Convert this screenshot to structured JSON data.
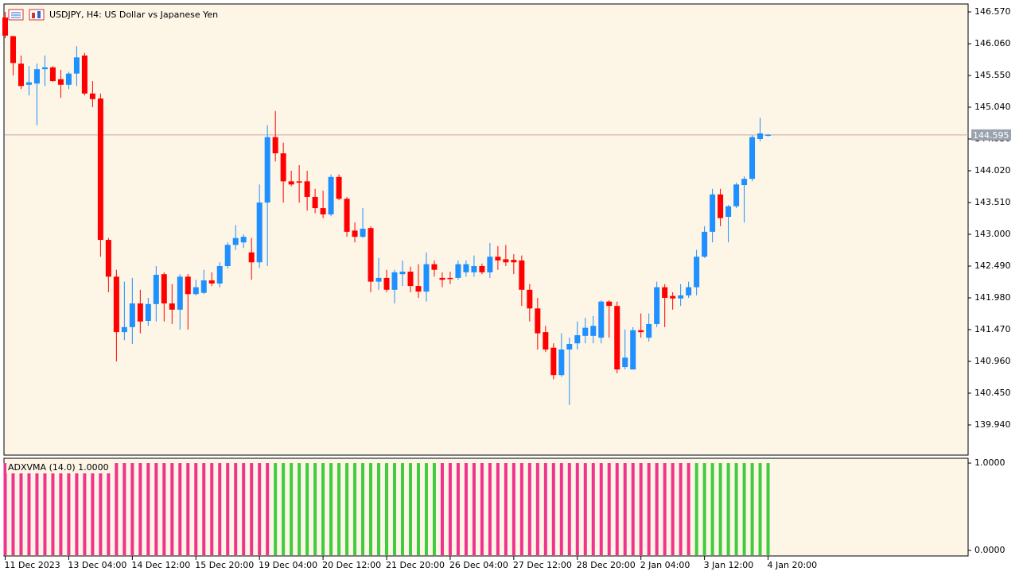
{
  "chart_data": [
    {
      "type": "candlestick",
      "title": "USDJPY, H4:  US Dollar vs Japanese Yen",
      "categories": [
        "11 Dec 2023",
        null,
        null,
        null,
        null,
        null,
        null,
        null,
        "13 Dec 04:00",
        null,
        null,
        null,
        null,
        null,
        null,
        null,
        "14 Dec 12:00",
        null,
        null,
        null,
        null,
        null,
        null,
        null,
        "15 Dec 20:00",
        null,
        null,
        null,
        null,
        null,
        null,
        null,
        "19 Dec 04:00",
        null,
        null,
        null,
        null,
        null,
        null,
        null,
        "20 Dec 12:00",
        null,
        null,
        null,
        null,
        null,
        null,
        null,
        "21 Dec 20:00",
        null,
        null,
        null,
        null,
        null,
        null,
        null,
        "26 Dec 04:00",
        null,
        null,
        null,
        null,
        null,
        null,
        null,
        "27 Dec 12:00",
        null,
        null,
        null,
        null,
        null,
        null,
        null,
        "28 Dec 20:00",
        null,
        null,
        null,
        null,
        null,
        null,
        null,
        "2 Jan 04:00",
        null,
        null,
        null,
        null,
        null,
        null,
        null,
        "3 Jan 12:00",
        null,
        null,
        null,
        null,
        null,
        null,
        null,
        "4 Jan 20:00"
      ],
      "open": [
        146.48,
        146.18,
        145.74,
        145.4,
        145.42,
        145.65,
        145.68,
        145.49,
        145.4,
        145.58,
        145.87,
        145.26,
        145.18,
        142.91,
        142.32,
        141.43,
        141.51,
        141.89,
        141.61,
        141.88,
        142.36,
        141.89,
        141.79,
        142.32,
        142.04,
        142.06,
        142.26,
        142.21,
        142.49,
        142.83,
        142.87,
        142.71,
        142.55,
        143.51,
        144.56,
        144.3,
        143.85,
        143.85,
        143.85,
        143.6,
        143.42,
        143.32,
        143.92,
        143.57,
        143.06,
        142.96,
        143.1,
        142.24,
        142.3,
        142.11,
        142.36,
        142.4,
        142.17,
        142.08,
        142.52,
        142.3,
        142.3,
        142.3,
        142.39,
        142.39,
        142.49,
        142.39,
        142.64,
        142.6,
        142.59,
        142.58,
        142.11,
        141.81,
        141.43,
        141.18,
        140.74,
        141.15,
        141.25,
        141.37,
        141.37,
        141.34,
        141.92,
        141.85,
        140.87,
        140.83,
        141.46,
        141.34,
        141.56,
        142.15,
        142.01,
        141.97,
        142.02,
        142.15,
        142.64,
        143.04,
        143.64,
        143.28,
        143.45,
        143.79,
        143.89,
        144.53,
        144.59
      ],
      "high": [
        146.57,
        146.19,
        145.87,
        145.7,
        145.74,
        145.87,
        145.7,
        145.64,
        145.61,
        146.02,
        145.91,
        145.46,
        145.26,
        142.94,
        142.43,
        142.24,
        142.3,
        142.11,
        141.98,
        142.49,
        142.39,
        142.2,
        142.36,
        142.36,
        142.27,
        142.43,
        142.39,
        142.55,
        142.87,
        143.15,
        143.0,
        142.94,
        143.8,
        144.75,
        144.98,
        144.47,
        144.02,
        144.11,
        144.02,
        143.73,
        143.7,
        143.96,
        143.96,
        143.6,
        143.19,
        143.42,
        143.13,
        142.62,
        142.43,
        142.43,
        142.58,
        142.48,
        142.52,
        142.71,
        142.58,
        142.39,
        142.4,
        142.58,
        142.58,
        142.66,
        142.53,
        142.86,
        142.81,
        142.83,
        142.68,
        142.66,
        142.2,
        141.98,
        141.53,
        141.25,
        141.41,
        141.34,
        141.6,
        141.66,
        141.69,
        141.94,
        141.94,
        141.92,
        141.47,
        141.51,
        141.73,
        141.73,
        142.24,
        142.2,
        142.07,
        142.2,
        142.24,
        142.75,
        143.13,
        143.73,
        143.73,
        143.47,
        143.83,
        143.93,
        144.59,
        144.87,
        144.61
      ],
      "low": [
        146.15,
        145.55,
        145.33,
        145.23,
        144.75,
        145.38,
        145.45,
        145.19,
        145.33,
        145.38,
        145.23,
        145.04,
        142.64,
        142.07,
        140.96,
        141.3,
        141.24,
        141.41,
        141.53,
        141.6,
        141.6,
        141.56,
        141.47,
        141.47,
        142.02,
        142.04,
        142.17,
        142.15,
        142.45,
        142.75,
        142.78,
        142.27,
        142.46,
        142.49,
        144.17,
        143.51,
        143.77,
        143.51,
        143.38,
        143.34,
        143.26,
        143.29,
        143.55,
        142.96,
        142.87,
        142.94,
        142.07,
        142.11,
        142.07,
        141.89,
        142.17,
        142.07,
        141.98,
        141.92,
        142.32,
        142.15,
        142.2,
        142.27,
        142.32,
        142.32,
        142.36,
        142.3,
        142.43,
        142.49,
        142.36,
        141.85,
        141.6,
        141.15,
        141.11,
        140.67,
        140.71,
        140.26,
        141.15,
        141.25,
        141.25,
        141.25,
        141.34,
        140.77,
        140.83,
        140.83,
        141.34,
        141.28,
        141.51,
        141.51,
        141.79,
        141.85,
        141.98,
        142.02,
        142.62,
        142.87,
        143.13,
        142.87,
        143.42,
        143.19,
        143.85,
        144.49,
        144.57
      ],
      "close": [
        146.19,
        145.75,
        145.38,
        145.44,
        145.65,
        145.68,
        145.46,
        145.4,
        145.58,
        145.84,
        145.26,
        145.17,
        142.91,
        142.32,
        141.43,
        141.51,
        141.89,
        141.6,
        141.88,
        142.35,
        141.89,
        141.79,
        142.32,
        142.04,
        142.15,
        142.26,
        142.21,
        142.49,
        142.83,
        142.94,
        142.96,
        142.55,
        143.51,
        144.56,
        144.3,
        143.85,
        143.8,
        143.83,
        143.6,
        143.42,
        143.32,
        143.92,
        143.57,
        143.04,
        142.96,
        143.09,
        142.24,
        142.3,
        142.11,
        142.39,
        142.4,
        142.17,
        142.08,
        142.52,
        142.43,
        142.27,
        142.3,
        142.52,
        142.52,
        142.49,
        142.39,
        142.64,
        142.58,
        142.55,
        142.55,
        142.11,
        141.81,
        141.41,
        141.15,
        140.74,
        141.15,
        141.24,
        141.38,
        141.5,
        141.53,
        141.92,
        141.85,
        140.83,
        141.02,
        141.46,
        141.43,
        141.56,
        142.15,
        141.98,
        141.97,
        142.02,
        142.15,
        142.64,
        143.04,
        143.64,
        143.26,
        143.45,
        143.8,
        143.89,
        144.56,
        144.62,
        144.6
      ],
      "up_color": "#1e90ff",
      "down_color": "#ff0000",
      "last_price": 144.595,
      "ylim": [
        139.4555,
        146.6975
      ],
      "yticks": [
        {
          "value": 146.57,
          "label": "146.570"
        },
        {
          "value": 146.06,
          "label": "146.060"
        },
        {
          "value": 145.55,
          "label": "145.550"
        },
        {
          "value": 145.04,
          "label": "145.040"
        },
        {
          "value": 144.53,
          "label": "144.530"
        },
        {
          "value": 144.02,
          "label": "144.020"
        },
        {
          "value": 143.51,
          "label": "143.510"
        },
        {
          "value": 143.0,
          "label": "143.000"
        },
        {
          "value": 142.49,
          "label": "142.490"
        },
        {
          "value": 141.98,
          "label": "141.980"
        },
        {
          "value": 141.47,
          "label": "141.470"
        },
        {
          "value": 140.96,
          "label": "140.960"
        },
        {
          "value": 140.45,
          "label": "140.450"
        },
        {
          "value": 139.94,
          "label": "139.940"
        }
      ]
    },
    {
      "type": "bar",
      "label": "ADXVMA (14.0) 1.0000",
      "values": [
        1,
        1,
        1,
        1,
        1,
        1,
        1,
        1,
        1,
        1,
        1,
        1,
        1,
        1,
        1,
        1,
        1,
        1,
        1,
        1,
        1,
        1,
        1,
        1,
        1,
        1,
        1,
        1,
        1,
        1,
        1,
        1,
        1,
        1,
        1,
        1,
        1,
        1,
        1,
        1,
        1,
        1,
        1,
        1,
        1,
        1,
        1,
        1,
        1,
        1,
        1,
        1,
        1,
        1,
        1,
        1,
        1,
        1,
        1,
        1,
        1,
        1,
        1,
        1,
        1,
        1,
        1,
        1,
        1,
        1,
        1,
        1,
        1,
        1,
        1,
        1,
        1,
        1,
        1,
        1,
        1,
        1,
        1,
        1,
        1,
        1,
        1,
        1,
        1,
        1,
        1,
        1,
        1,
        1,
        1,
        1,
        1
      ],
      "colors": [
        "#f0338c",
        "#f0338c",
        "#f0338c",
        "#f0338c",
        "#f0338c",
        "#f0338c",
        "#f0338c",
        "#f0338c",
        "#f0338c",
        "#f0338c",
        "#f0338c",
        "#f0338c",
        "#f0338c",
        "#f0338c",
        "#f0338c",
        "#f0338c",
        "#f0338c",
        "#f0338c",
        "#f0338c",
        "#f0338c",
        "#f0338c",
        "#f0338c",
        "#f0338c",
        "#f0338c",
        "#f0338c",
        "#f0338c",
        "#f0338c",
        "#f0338c",
        "#f0338c",
        "#f0338c",
        "#f0338c",
        "#f0338c",
        "#f0338c",
        "#f0338c",
        "#3fcc3f",
        "#3fcc3f",
        "#3fcc3f",
        "#3fcc3f",
        "#3fcc3f",
        "#3fcc3f",
        "#3fcc3f",
        "#3fcc3f",
        "#3fcc3f",
        "#3fcc3f",
        "#3fcc3f",
        "#3fcc3f",
        "#3fcc3f",
        "#3fcc3f",
        "#3fcc3f",
        "#3fcc3f",
        "#3fcc3f",
        "#3fcc3f",
        "#3fcc3f",
        "#3fcc3f",
        "#3fcc3f",
        "#f0338c",
        "#f0338c",
        "#f0338c",
        "#f0338c",
        "#f0338c",
        "#f0338c",
        "#f0338c",
        "#f0338c",
        "#f0338c",
        "#f0338c",
        "#f0338c",
        "#f0338c",
        "#f0338c",
        "#f0338c",
        "#f0338c",
        "#f0338c",
        "#f0338c",
        "#f0338c",
        "#f0338c",
        "#f0338c",
        "#f0338c",
        "#f0338c",
        "#f0338c",
        "#f0338c",
        "#f0338c",
        "#f0338c",
        "#f0338c",
        "#f0338c",
        "#f0338c",
        "#f0338c",
        "#f0338c",
        "#f0338c",
        "#3fcc3f",
        "#3fcc3f",
        "#3fcc3f",
        "#3fcc3f",
        "#3fcc3f",
        "#3fcc3f",
        "#3fcc3f",
        "#3fcc3f",
        "#3fcc3f",
        "#3fcc3f"
      ],
      "ylim": [
        -0.064,
        1.055
      ],
      "yticks": [
        {
          "value": 1,
          "label": "1.0000"
        },
        {
          "value": 0,
          "label": "0.0000"
        }
      ]
    }
  ]
}
